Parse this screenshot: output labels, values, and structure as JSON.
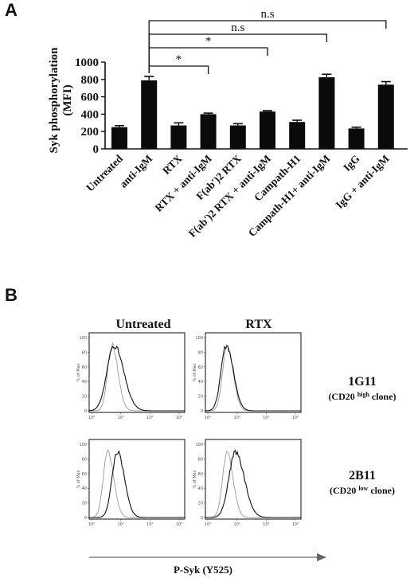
{
  "panel_a": {
    "letter": "A"
  },
  "panel_b": {
    "letter": "B",
    "columns": [
      "Untreated",
      "RTX"
    ],
    "rows": [
      {
        "name": "1G11",
        "sub_pre": "(CD20 ",
        "sub_sup": "high",
        "sub_post": " clone)"
      },
      {
        "name": "2B11",
        "sub_pre": "(CD20 ",
        "sub_sup": "low",
        "sub_post": " clone)"
      }
    ],
    "xlabel": "P-Syk (Y525)",
    "hist_ylabel": "% of Max",
    "hist_yticks": [
      "100",
      "80",
      "60",
      "40",
      "20",
      "0"
    ],
    "hist_xticks": [
      "10⁰",
      "10¹",
      "10²",
      "10³"
    ]
  },
  "chart_data": [
    {
      "type": "bar",
      "ylabel": "Syk phosphorylation (MFI)",
      "ylabel_lines": [
        "Syk phosphorylation",
        "(MFI)"
      ],
      "ylim": [
        0,
        1000
      ],
      "yticks": [
        0,
        200,
        400,
        600,
        800,
        1000
      ],
      "categories": [
        "Untreated",
        "anti-IgM",
        "RTX",
        "RTX + anti-IgM",
        "F(ab')2 RTX",
        "F(ab')2 RTX + anti-IgM",
        "Campath-H1",
        "Campath-H1+ anti-IgM",
        "IgG",
        "IgG + anti-IgM"
      ],
      "values": [
        250,
        790,
        270,
        400,
        270,
        430,
        310,
        825,
        235,
        740
      ],
      "errors": [
        18,
        45,
        30,
        12,
        20,
        10,
        20,
        35,
        15,
        35
      ],
      "comparisons": [
        {
          "from": 1,
          "to": 3,
          "label": "*"
        },
        {
          "from": 1,
          "to": 5,
          "label": "*"
        },
        {
          "from": 1,
          "to": 7,
          "label": "n.s"
        },
        {
          "from": 1,
          "to": 9,
          "label": "n.s"
        }
      ]
    },
    {
      "type": "line",
      "title": "",
      "note": "Flow cytometry histograms of P-Syk (Y525); values are relative curve shapes",
      "panels": [
        {
          "row": "1G11",
          "column": "Untreated",
          "control_peak": 9,
          "treated_peak": 11,
          "treated_spread": 1.35
        },
        {
          "row": "1G11",
          "column": "RTX",
          "control_peak": 8,
          "treated_peak": 7.5,
          "treated_spread": 1.0
        },
        {
          "row": "2B11",
          "column": "Untreated",
          "control_peak": 6,
          "treated_peak": 15,
          "treated_spread": 1.0
        },
        {
          "row": "2B11",
          "column": "RTX",
          "control_peak": 8,
          "treated_peak": 18,
          "treated_spread": 1.25
        }
      ]
    }
  ]
}
